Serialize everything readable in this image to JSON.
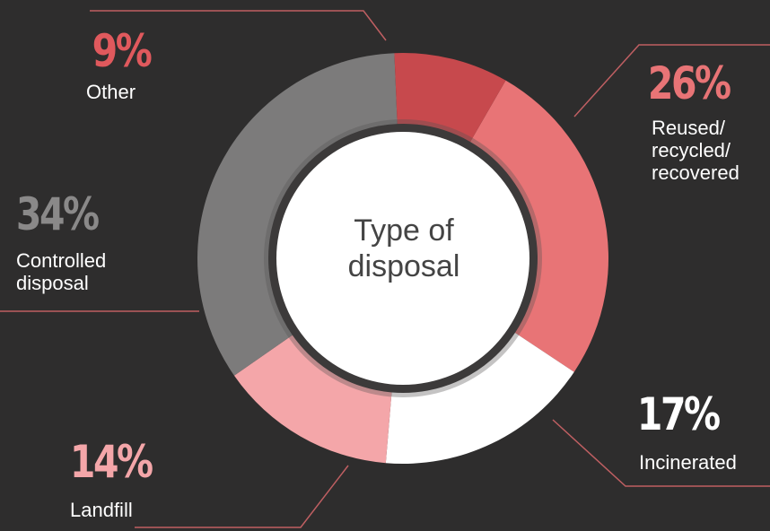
{
  "chart_data": {
    "type": "pie",
    "donut": true,
    "title": "Type of\ndisposal",
    "slices": [
      {
        "name": "Reused/\nrecycled/\nrecovered",
        "value": 26,
        "label": "26%",
        "color": "#e87476"
      },
      {
        "name": "Incinerated",
        "value": 17,
        "label": "17%",
        "color": "#ffffff"
      },
      {
        "name": "Landfill",
        "value": 14,
        "label": "14%",
        "color": "#f4a6a9"
      },
      {
        "name": "Controlled\ndisposal",
        "value": 34,
        "label": "34%",
        "color": "#7c7b7b"
      },
      {
        "name": "Other",
        "value": 9,
        "label": "9%",
        "color": "#c7494d"
      }
    ],
    "percent_colors": {
      "Reused/\nrecycled/\nrecovered": "#e87476",
      "Incinerated": "#ffffff",
      "Landfill": "#f4a6a9",
      "Controlled\ndisposal": "#8a8989",
      "Other": "#e0595d"
    },
    "background": "#2e2d2d",
    "leader_line_color": "#bf5f62"
  }
}
